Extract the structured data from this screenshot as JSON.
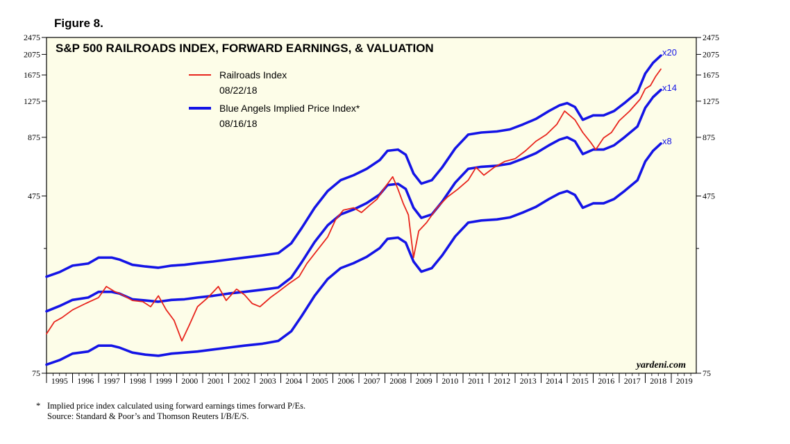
{
  "figure_label": "Figure 8.",
  "footnote": {
    "star": "*",
    "line1": "Implied price index calculated using forward earnings times forward P/Es.",
    "line2": "Source: Standard & Poor’s and Thomson Reuters I/B/E/S."
  },
  "colors": {
    "plot_bg": "#fdfde8",
    "red": "#e8241c",
    "blue": "#1414e6",
    "frame": "#000000"
  },
  "chart_data": {
    "type": "line",
    "title": "S&P 500 RAILROADS INDEX, FORWARD EARNINGS, & VALUATION",
    "y_scale": "log",
    "ylim": [
      75,
      2475
    ],
    "xlim": [
      1995.0,
      2019.9
    ],
    "y_ticks_labeled": [
      75,
      475,
      875,
      1275,
      1675,
      2075,
      2475
    ],
    "y_ticks_minor": [
      275
    ],
    "y_tick_labels": [
      "75",
      "475",
      "875",
      "1275",
      "1675",
      "2075",
      "2475"
    ],
    "x_tick_labels": [
      "1995",
      "1996",
      "1997",
      "1998",
      "1999",
      "2000",
      "2001",
      "2002",
      "2003",
      "2004",
      "2005",
      "2006",
      "2007",
      "2008",
      "2009",
      "2010",
      "2011",
      "2012",
      "2013",
      "2014",
      "2015",
      "2016",
      "2017",
      "2018",
      "2019"
    ],
    "legend": {
      "railroads_label": "Railroads Index",
      "railroads_date": "08/22/18",
      "blue_label": "Blue Angels Implied Price Index*",
      "blue_date": "08/16/18",
      "placement": "top-center"
    },
    "multiplier_labels": {
      "x20": "x20",
      "x14": "x14",
      "x8": "x8"
    },
    "credit": "yardeni.com",
    "series": [
      {
        "name": "Railroads Index",
        "color": "#e8241c",
        "x": [
          1995.0,
          1995.3,
          1995.6,
          1996.0,
          1996.5,
          1997.0,
          1997.3,
          1997.6,
          1997.9,
          1998.3,
          1998.7,
          1999.0,
          1999.3,
          1999.6,
          1999.9,
          2000.2,
          2000.5,
          2000.8,
          2001.2,
          2001.6,
          2001.9,
          2002.3,
          2002.6,
          2002.9,
          2003.2,
          2003.6,
          2003.9,
          2004.3,
          2004.7,
          2005.0,
          2005.4,
          2005.8,
          2006.1,
          2006.4,
          2006.8,
          2007.1,
          2007.4,
          2007.7,
          2008.0,
          2008.3,
          2008.5,
          2008.7,
          2008.9,
          2009.1,
          2009.3,
          2009.6,
          2010.0,
          2010.4,
          2010.8,
          2011.2,
          2011.5,
          2011.8,
          2012.2,
          2012.6,
          2013.0,
          2013.4,
          2013.8,
          2014.2,
          2014.6,
          2014.9,
          2015.3,
          2015.6,
          2015.9,
          2016.1,
          2016.4,
          2016.7,
          2017.0,
          2017.4,
          2017.8,
          2018.0,
          2018.2,
          2018.4,
          2018.6
        ],
        "values": [
          113,
          128,
          134,
          145,
          155,
          165,
          185,
          176,
          170,
          160,
          158,
          150,
          168,
          145,
          130,
          105,
          125,
          150,
          165,
          185,
          160,
          180,
          170,
          155,
          150,
          165,
          175,
          190,
          205,
          235,
          270,
          310,
          370,
          410,
          420,
          400,
          430,
          460,
          520,
          580,
          510,
          440,
          390,
          250,
          330,
          360,
          420,
          470,
          510,
          560,
          640,
          590,
          640,
          680,
          700,
          760,
          840,
          900,
          1000,
          1150,
          1050,
          920,
          830,
          770,
          870,
          920,
          1040,
          1150,
          1300,
          1450,
          1500,
          1650,
          1780
        ]
      },
      {
        "name": "Blue Angels Implied Price Index x20",
        "color": "#1414e6",
        "x": [
          1995.0,
          1995.5,
          1996.0,
          1996.6,
          1997.0,
          1997.5,
          1997.8,
          1998.3,
          1998.8,
          1999.3,
          1999.8,
          2000.3,
          2000.8,
          2001.4,
          2002.0,
          2002.6,
          2003.3,
          2003.9,
          2004.4,
          2004.8,
          2005.3,
          2005.8,
          2006.3,
          2006.8,
          2007.3,
          2007.8,
          2008.1,
          2008.5,
          2008.8,
          2009.1,
          2009.4,
          2009.8,
          2010.2,
          2010.7,
          2011.2,
          2011.7,
          2012.3,
          2012.8,
          2013.3,
          2013.8,
          2014.3,
          2014.7,
          2015.0,
          2015.3,
          2015.6,
          2016.0,
          2016.4,
          2016.8,
          2017.2,
          2017.7,
          2018.0,
          2018.3,
          2018.6
        ],
        "values": [
          205,
          215,
          230,
          235,
          250,
          250,
          245,
          232,
          228,
          225,
          230,
          232,
          236,
          240,
          245,
          250,
          256,
          262,
          290,
          340,
          420,
          500,
          560,
          590,
          630,
          690,
          760,
          770,
          730,
          600,
          540,
          560,
          640,
          780,
          900,
          920,
          930,
          950,
          1000,
          1060,
          1150,
          1220,
          1250,
          1200,
          1050,
          1100,
          1100,
          1150,
          1250,
          1400,
          1700,
          1900,
          2050
        ]
      },
      {
        "name": "Blue Angels Implied Price Index x14",
        "color": "#1414e6",
        "x": [
          1995.0,
          1995.5,
          1996.0,
          1996.6,
          1997.0,
          1997.5,
          1997.8,
          1998.3,
          1998.8,
          1999.3,
          1999.8,
          2000.3,
          2000.8,
          2001.4,
          2002.0,
          2002.6,
          2003.3,
          2003.9,
          2004.4,
          2004.8,
          2005.3,
          2005.8,
          2006.3,
          2006.8,
          2007.3,
          2007.8,
          2008.1,
          2008.5,
          2008.8,
          2009.1,
          2009.4,
          2009.8,
          2010.2,
          2010.7,
          2011.2,
          2011.7,
          2012.3,
          2012.8,
          2013.3,
          2013.8,
          2014.3,
          2014.7,
          2015.0,
          2015.3,
          2015.6,
          2016.0,
          2016.4,
          2016.8,
          2017.2,
          2017.7,
          2018.0,
          2018.3,
          2018.6
        ],
        "values": [
          143,
          151,
          161,
          165,
          175,
          175,
          172,
          162,
          160,
          158,
          161,
          162,
          165,
          168,
          172,
          175,
          179,
          183,
          203,
          238,
          294,
          350,
          392,
          413,
          441,
          483,
          532,
          539,
          511,
          420,
          378,
          392,
          448,
          546,
          630,
          644,
          651,
          665,
          700,
          742,
          805,
          854,
          875,
          840,
          735,
          770,
          770,
          805,
          875,
          980,
          1190,
          1330,
          1435
        ]
      },
      {
        "name": "Blue Angels Implied Price Index x8",
        "color": "#1414e6",
        "x": [
          1995.0,
          1995.5,
          1996.0,
          1996.6,
          1997.0,
          1997.5,
          1997.8,
          1998.3,
          1998.8,
          1999.3,
          1999.8,
          2000.3,
          2000.8,
          2001.4,
          2002.0,
          2002.6,
          2003.3,
          2003.9,
          2004.4,
          2004.8,
          2005.3,
          2005.8,
          2006.3,
          2006.8,
          2007.3,
          2007.8,
          2008.1,
          2008.5,
          2008.8,
          2009.1,
          2009.4,
          2009.8,
          2010.2,
          2010.7,
          2011.2,
          2011.7,
          2012.3,
          2012.8,
          2013.3,
          2013.8,
          2014.3,
          2014.7,
          2015.0,
          2015.3,
          2015.6,
          2016.0,
          2016.4,
          2016.8,
          2017.2,
          2017.7,
          2018.0,
          2018.3,
          2018.6
        ],
        "values": [
          82,
          86,
          92,
          94,
          100,
          100,
          98,
          93,
          91,
          90,
          92,
          93,
          94,
          96,
          98,
          100,
          102,
          105,
          116,
          136,
          168,
          200,
          224,
          236,
          252,
          276,
          304,
          308,
          292,
          240,
          216,
          224,
          256,
          312,
          360,
          368,
          372,
          380,
          400,
          424,
          460,
          488,
          500,
          480,
          420,
          440,
          440,
          460,
          500,
          560,
          680,
          760,
          820
        ]
      }
    ]
  }
}
